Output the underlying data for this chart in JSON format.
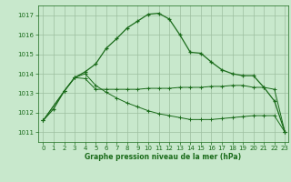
{
  "background_color": "#c8e8cc",
  "grid_color": "#9dbfa0",
  "line_color": "#1a6b1a",
  "marker_color": "#1a6b1a",
  "xlabel": "Graphe pression niveau de la mer (hPa)",
  "xlabel_color": "#1a6b1a",
  "tick_color": "#1a6b1a",
  "ylim": [
    1010.5,
    1017.5
  ],
  "xlim": [
    -0.5,
    23.3
  ],
  "yticks": [
    1011,
    1012,
    1013,
    1014,
    1015,
    1016,
    1017
  ],
  "xticks": [
    0,
    1,
    2,
    3,
    4,
    5,
    6,
    7,
    8,
    9,
    10,
    11,
    12,
    13,
    14,
    15,
    16,
    17,
    18,
    19,
    20,
    21,
    22,
    23
  ],
  "series1": {
    "x": [
      0,
      1,
      2,
      3,
      4,
      5,
      6,
      7,
      8,
      9,
      10,
      11,
      12,
      13,
      14,
      15,
      16,
      17,
      18,
      19,
      20,
      21,
      22,
      23
    ],
    "y": [
      1011.6,
      1012.2,
      1013.1,
      1013.8,
      1014.1,
      1014.5,
      1015.3,
      1015.8,
      1016.35,
      1016.7,
      1017.05,
      1017.1,
      1016.8,
      1016.0,
      1015.1,
      1015.05,
      1014.6,
      1014.2,
      1014.0,
      1013.9,
      1013.9,
      1013.3,
      1012.6,
      1011.0
    ]
  },
  "series2": {
    "x": [
      0,
      2,
      3,
      4,
      5,
      6,
      7,
      8,
      9,
      10,
      11,
      12,
      13,
      14,
      15,
      16,
      17,
      18,
      19,
      20,
      21,
      22,
      23
    ],
    "y": [
      1011.6,
      1013.1,
      1013.8,
      1013.75,
      1013.2,
      1013.2,
      1013.2,
      1013.2,
      1013.2,
      1013.25,
      1013.25,
      1013.25,
      1013.3,
      1013.3,
      1013.3,
      1013.35,
      1013.35,
      1013.4,
      1013.4,
      1013.3,
      1013.3,
      1013.2,
      1011.0
    ]
  },
  "series3": {
    "x": [
      0,
      2,
      3,
      4,
      5,
      6,
      7,
      8,
      9,
      10,
      11,
      12,
      13,
      14,
      15,
      16,
      17,
      18,
      19,
      20,
      21,
      22,
      23
    ],
    "y": [
      1011.6,
      1013.1,
      1013.8,
      1014.0,
      1013.4,
      1013.05,
      1012.75,
      1012.5,
      1012.3,
      1012.1,
      1011.95,
      1011.85,
      1011.75,
      1011.65,
      1011.65,
      1011.65,
      1011.7,
      1011.75,
      1011.8,
      1011.85,
      1011.85,
      1011.85,
      1011.0
    ]
  }
}
